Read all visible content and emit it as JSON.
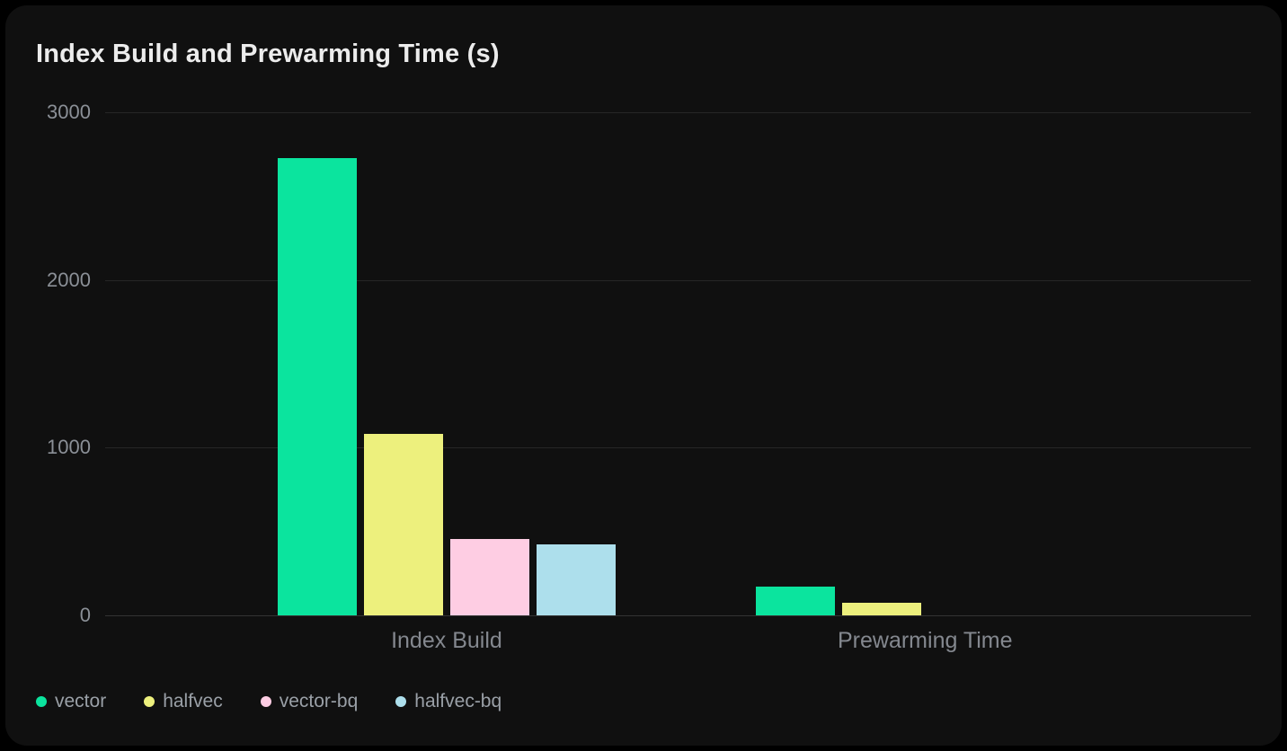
{
  "chart_data": {
    "type": "bar",
    "title": "Index Build and Prewarming Time (s)",
    "categories": [
      "Index Build",
      "Prewarming Time"
    ],
    "series": [
      {
        "name": "vector",
        "color": "#0BE49E",
        "values": [
          2725,
          170
        ]
      },
      {
        "name": "halfvec",
        "color": "#EDF07D",
        "values": [
          1080,
          75
        ]
      },
      {
        "name": "vector-bq",
        "color": "#FECDE3",
        "values": [
          455,
          0
        ]
      },
      {
        "name": "halfvec-bq",
        "color": "#ADDFEC",
        "values": [
          425,
          0
        ]
      }
    ],
    "ylim": [
      0,
      3000
    ],
    "yticks": [
      0,
      1000,
      2000,
      3000
    ],
    "xlabel": "",
    "ylabel": "",
    "grid": true,
    "legend_position": "bottom-left"
  },
  "colors": {
    "page_background": "#000000",
    "card_background": "#101010",
    "gridline": "#272727",
    "zero_line": "#343434",
    "title_text": "#ececec",
    "ytick_text": "#8b9097",
    "xtick_text": "#84888f",
    "legend_text": "#9aa0a7"
  }
}
